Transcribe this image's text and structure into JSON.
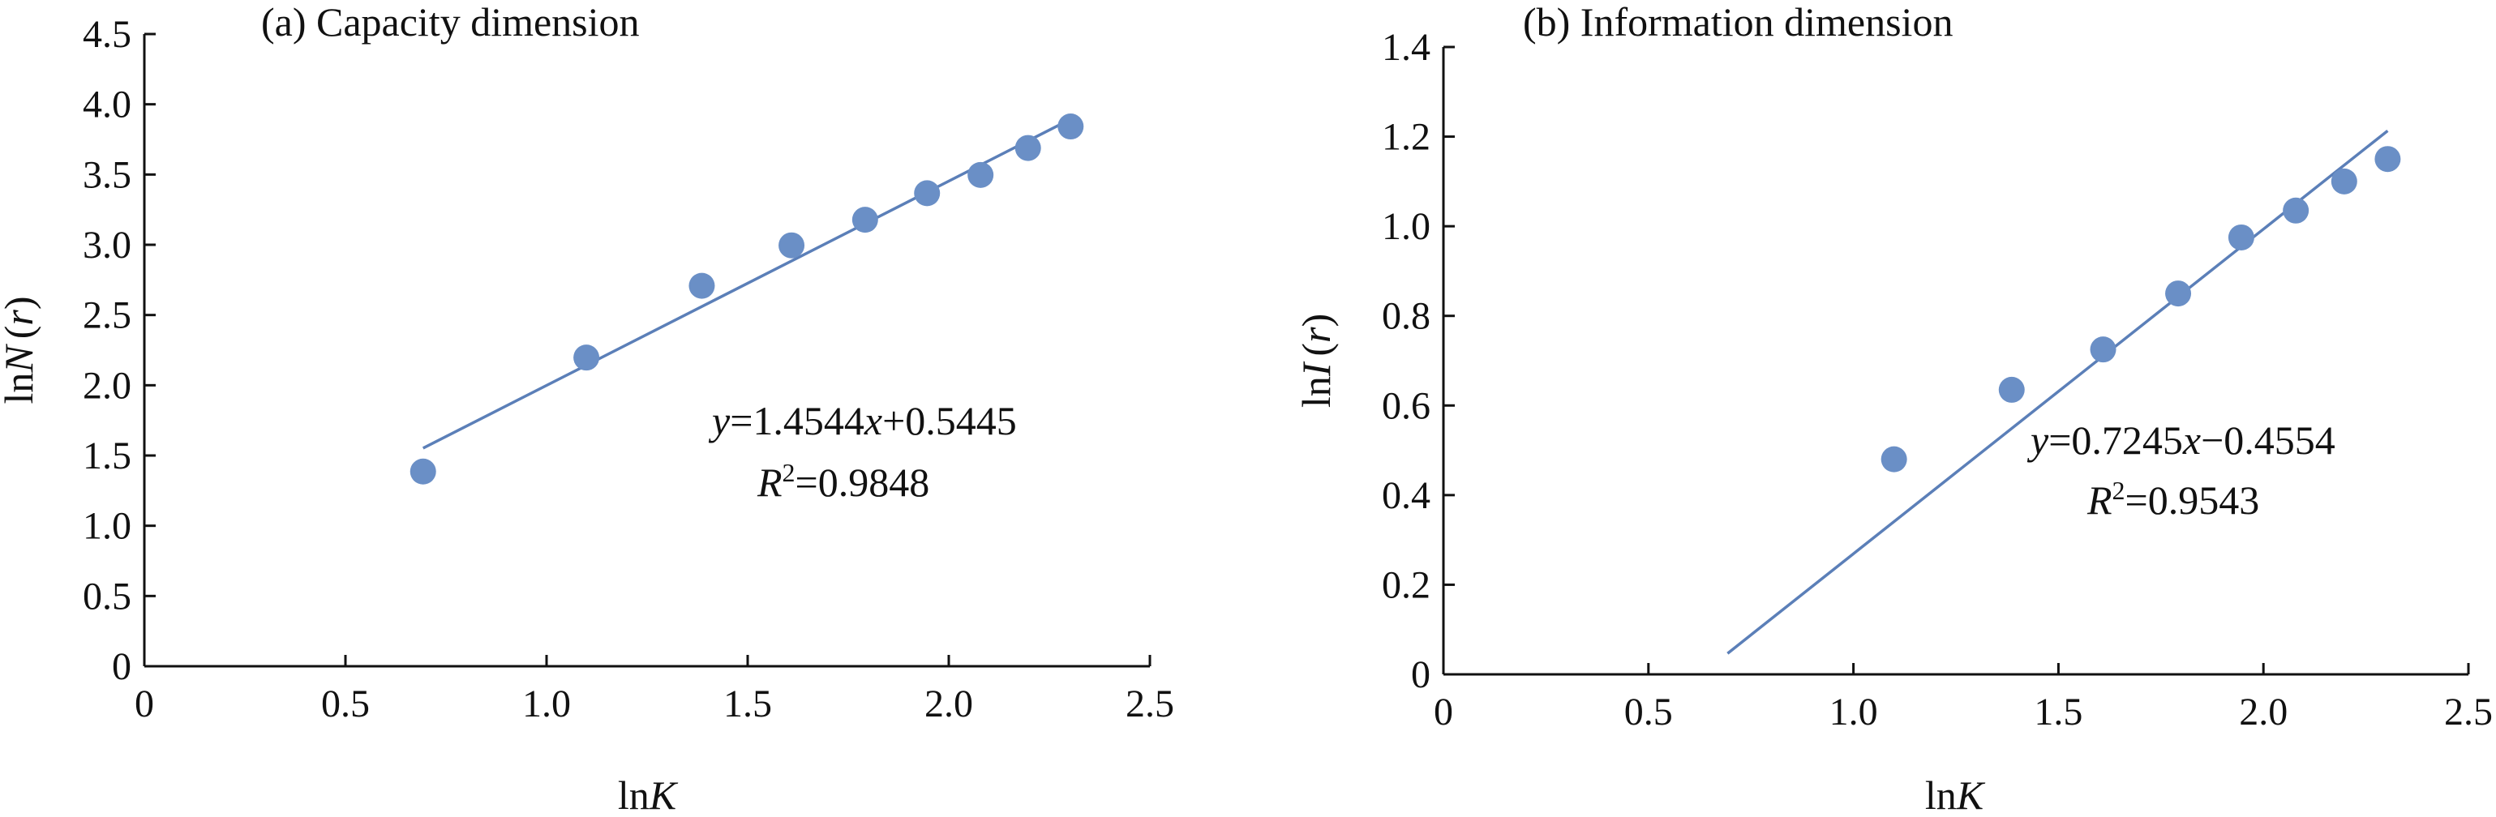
{
  "chart_data": [
    {
      "type": "scatter",
      "title": "(a) Capacity dimension",
      "xlabel_prefix": "ln",
      "xlabel_var": "K",
      "ylabel_prefix": "ln",
      "ylabel_var": "N",
      "ylabel_arg": "r",
      "xlim": [
        0,
        2.5
      ],
      "ylim": [
        0,
        4.5
      ],
      "xticks": [
        "0",
        "0.5",
        "1.0",
        "1.5",
        "2.0",
        "2.5"
      ],
      "yticks": [
        "0",
        "0.5",
        "1.0",
        "1.5",
        "2.0",
        "2.5",
        "3.0",
        "3.5",
        "4.0",
        "4.5"
      ],
      "grid": false,
      "point_color": "#6a8fc6",
      "line_color": "#5b7fb8",
      "x": [
        0.693,
        1.099,
        1.386,
        1.609,
        1.792,
        1.946,
        2.079,
        2.197,
        2.303
      ],
      "y": [
        1.386,
        2.197,
        2.708,
        2.996,
        3.178,
        3.367,
        3.497,
        3.689,
        3.842
      ],
      "fit": {
        "slope": 1.4544,
        "intercept": 0.5445,
        "x_range": [
          0.693,
          2.303
        ]
      },
      "equation": {
        "y": "y",
        "eq1": "=1.4544",
        "x": "x",
        "eq2": "+0.5445",
        "R": "R",
        "sup": "2",
        "r2": "=0.9848"
      }
    },
    {
      "type": "scatter",
      "title": "(b) Information dimension",
      "xlabel_prefix": "ln",
      "xlabel_var": "K",
      "ylabel_prefix": "ln",
      "ylabel_var": "I",
      "ylabel_arg": "r",
      "xlim": [
        0,
        2.5
      ],
      "ylim": [
        0,
        1.4
      ],
      "xticks": [
        "0",
        "0.5",
        "1.0",
        "1.5",
        "2.0",
        "2.5"
      ],
      "yticks": [
        "0",
        "0.2",
        "0.4",
        "0.6",
        "0.8",
        "1.0",
        "1.2",
        "1.4"
      ],
      "grid": false,
      "point_color": "#6a8fc6",
      "line_color": "#5b7fb8",
      "x": [
        1.099,
        1.386,
        1.609,
        1.792,
        1.946,
        2.079,
        2.197,
        2.303
      ],
      "y": [
        0.48,
        0.635,
        0.725,
        0.85,
        0.975,
        1.035,
        1.1,
        1.15
      ],
      "fit": {
        "slope": 0.7245,
        "intercept": -0.4554,
        "x_range": [
          0.693,
          2.303
        ]
      },
      "equation": {
        "y": "y",
        "eq1": "=0.7245",
        "x": "x",
        "eq2": "−0.4554",
        "R": "R",
        "sup": "2",
        "r2": "=0.9543"
      }
    }
  ]
}
